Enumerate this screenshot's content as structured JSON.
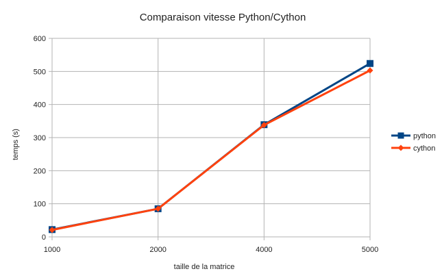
{
  "chart_data": {
    "type": "line",
    "title": "Comparaison vitesse Python/Cython",
    "xlabel": "taille de la matrice",
    "ylabel": "temps (s)",
    "categories": [
      "1000",
      "2000",
      "4000",
      "5000"
    ],
    "ylim": [
      0,
      600
    ],
    "yticks": [
      "0",
      "100",
      "200",
      "300",
      "400",
      "500",
      "600"
    ],
    "grid": true,
    "legend_position": "right",
    "series": [
      {
        "name": "python",
        "values": [
          22,
          85,
          339,
          524
        ],
        "color": "#004586",
        "marker": "square"
      },
      {
        "name": "cython",
        "values": [
          21,
          85,
          338,
          503
        ],
        "color": "#ff420e",
        "marker": "diamond"
      }
    ]
  }
}
